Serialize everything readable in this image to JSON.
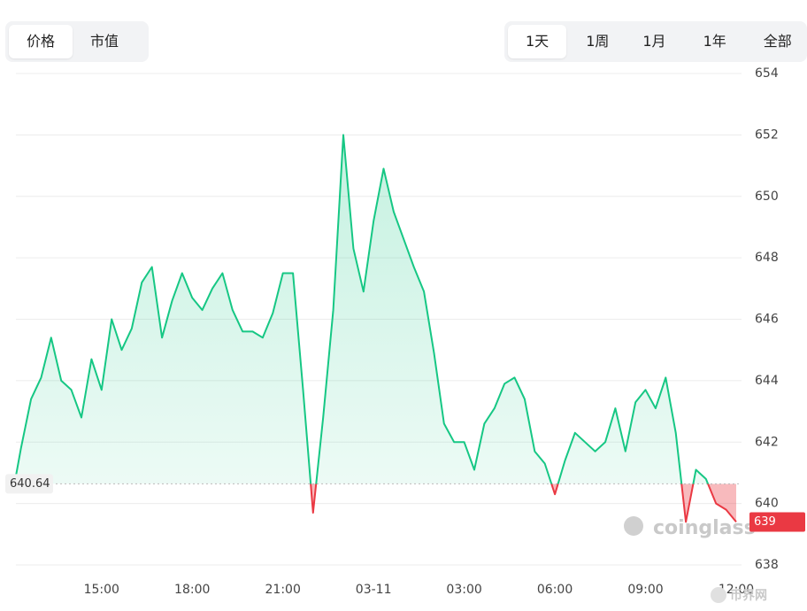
{
  "tabs": {
    "metric": [
      "价格",
      "市值"
    ],
    "range": [
      "1天",
      "1周",
      "1月",
      "1年",
      "全部"
    ]
  },
  "chart_data": {
    "type": "line",
    "x": [
      "03-10 12:10",
      "03-10 12:20",
      "03-10 12:40",
      "03-10 13:00",
      "03-10 13:20",
      "03-10 13:40",
      "03-10 14:00",
      "03-10 14:20",
      "03-10 14:40",
      "03-10 15:00",
      "03-10 15:20",
      "03-10 15:40",
      "03-10 16:00",
      "03-10 16:20",
      "03-10 16:40",
      "03-10 17:00",
      "03-10 17:20",
      "03-10 17:40",
      "03-10 18:00",
      "03-10 18:20",
      "03-10 18:40",
      "03-10 19:00",
      "03-10 19:20",
      "03-10 19:40",
      "03-10 20:00",
      "03-10 20:20",
      "03-10 20:40",
      "03-10 21:00",
      "03-10 21:20",
      "03-10 21:40",
      "03-10 22:00",
      "03-10 22:20",
      "03-10 22:40",
      "03-10 23:00",
      "03-10 23:20",
      "03-10 23:40",
      "03-11 00:00",
      "03-11 00:20",
      "03-11 00:40",
      "03-11 01:00",
      "03-11 01:20",
      "03-11 01:40",
      "03-11 02:00",
      "03-11 02:20",
      "03-11 02:40",
      "03-11 03:00",
      "03-11 03:20",
      "03-11 03:40",
      "03-11 04:00",
      "03-11 04:20",
      "03-11 04:40",
      "03-11 05:00",
      "03-11 05:20",
      "03-11 05:40",
      "03-11 06:00",
      "03-11 06:20",
      "03-11 06:40",
      "03-11 07:00",
      "03-11 07:20",
      "03-11 07:40",
      "03-11 08:00",
      "03-11 08:20",
      "03-11 08:40",
      "03-11 09:00",
      "03-11 09:20",
      "03-11 09:40",
      "03-11 10:00",
      "03-11 10:20",
      "03-11 10:40",
      "03-11 11:00",
      "03-11 11:20",
      "03-11 11:40",
      "03-11 12:00"
    ],
    "values": [
      640.9,
      641.8,
      643.4,
      644.1,
      645.4,
      644.0,
      643.7,
      642.8,
      644.7,
      643.7,
      646.0,
      645.0,
      645.7,
      647.2,
      647.7,
      645.4,
      646.6,
      647.5,
      646.7,
      646.3,
      647.0,
      647.5,
      646.3,
      645.6,
      645.6,
      645.4,
      646.2,
      647.5,
      647.5,
      643.7,
      639.7,
      642.8,
      646.3,
      652.0,
      648.3,
      646.9,
      649.2,
      650.9,
      649.5,
      648.6,
      647.7,
      646.9,
      644.9,
      642.6,
      642.0,
      642.0,
      641.1,
      642.6,
      643.1,
      643.9,
      644.1,
      643.4,
      641.7,
      641.3,
      640.3,
      641.4,
      642.3,
      642.0,
      641.7,
      642.0,
      643.1,
      641.7,
      643.3,
      643.7,
      643.1,
      644.1,
      642.3,
      639.4,
      641.1,
      640.8,
      640.0,
      639.8,
      639.4
    ],
    "color": "#16c784",
    "negative_color": "#ea3943",
    "baseline": 640.64,
    "last_label": "639",
    "xlim": [
      "03-10 12:10",
      "03-11 12:00"
    ],
    "xticks": [
      {
        "value": "03-10 15:00",
        "label": "15:00"
      },
      {
        "value": "03-10 18:00",
        "label": "18:00"
      },
      {
        "value": "03-10 21:00",
        "label": "21:00"
      },
      {
        "value": "03-11 00:00",
        "label": "03-11"
      },
      {
        "value": "03-11 03:00",
        "label": "03:00"
      },
      {
        "value": "03-11 06:00",
        "label": "06:00"
      },
      {
        "value": "03-11 09:00",
        "label": "09:00"
      },
      {
        "value": "03-11 12:00",
        "label": "12:00"
      }
    ],
    "ylim": [
      638,
      654
    ],
    "yticks": [
      638,
      640,
      642,
      644,
      646,
      648,
      650,
      652,
      654
    ],
    "grid": true,
    "watermark": "coinglass",
    "site_logo": "币界网"
  }
}
